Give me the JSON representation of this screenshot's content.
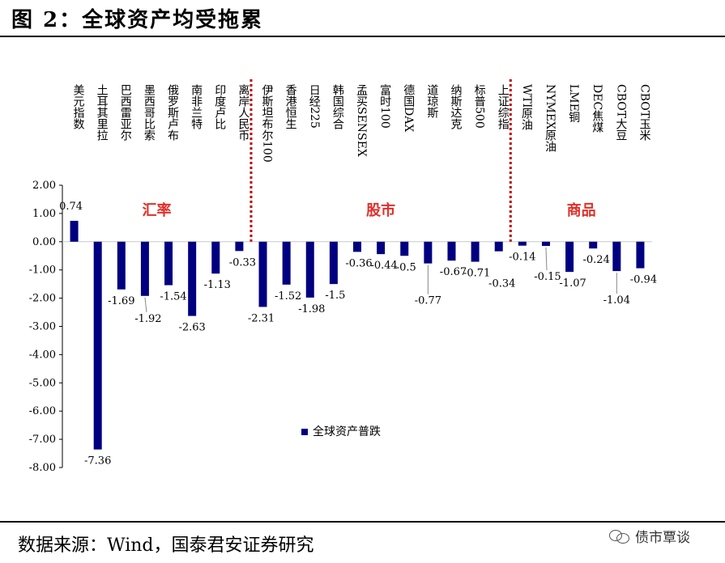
{
  "figure": {
    "title": "图 2：全球资产均受拖累",
    "source": "数据来源：Wind，国泰君安证券研究",
    "watermark": "债市覃谈",
    "watermark_icon": "wechat-icon"
  },
  "chart_data": {
    "type": "bar",
    "categories": [
      "美元指数",
      "土耳其里拉",
      "巴西雷亚尔",
      "墨西哥比索",
      "俄罗斯卢布",
      "南非兰特",
      "印度卢比",
      "离岸人民币",
      "伊斯坦布尔100",
      "香港恒生",
      "日经225",
      "韩国综合",
      "孟买SENSEX",
      "富时100",
      "德国DAX",
      "道琼斯",
      "纳斯达克",
      "标普500",
      "上证综指",
      "WTI原油",
      "NYMEX原油",
      "LME铜",
      "DEC焦煤",
      "CBOT大豆",
      "CBOT玉米"
    ],
    "series": [
      {
        "name": "全球资产普跌",
        "values": [
          0.74,
          -7.36,
          -1.69,
          -1.92,
          -1.54,
          -2.63,
          -1.13,
          -0.33,
          -2.31,
          -1.52,
          -1.98,
          -1.5,
          -0.36,
          -0.44,
          -0.5,
          -0.77,
          -0.67,
          -0.71,
          -0.34,
          -0.14,
          -0.15,
          -1.07,
          -0.24,
          -1.04,
          -0.94
        ],
        "labels": [
          "0.74",
          "-7.36",
          "-1.69",
          "-1.92",
          "-1.54",
          "-2.63",
          "-1.13",
          "-0.33",
          "-2.31",
          "-1.52",
          "-1.98",
          "-1.5",
          "-0.36",
          "-0.44",
          "-0.5",
          "-0.77",
          "-0.67",
          "-0.71",
          "-0.34",
          "-0.14",
          "-0.15",
          "-1.07",
          "-0.24",
          "-1.04",
          "-0.94"
        ]
      }
    ],
    "groups": [
      {
        "label": "汇率"
      },
      {
        "label": "股市"
      },
      {
        "label": "商品"
      }
    ],
    "yticks": [
      "2.00",
      "1.00",
      "0.00",
      "-1.00",
      "-2.00",
      "-3.00",
      "-4.00",
      "-5.00",
      "-6.00",
      "-7.00",
      "-8.00"
    ],
    "ylim": [
      -8,
      2
    ],
    "grid": false,
    "legend_position": "lower-center",
    "colors": {
      "bar": "#000080",
      "separator": "#c00000",
      "group_label": "#e0302a"
    }
  }
}
